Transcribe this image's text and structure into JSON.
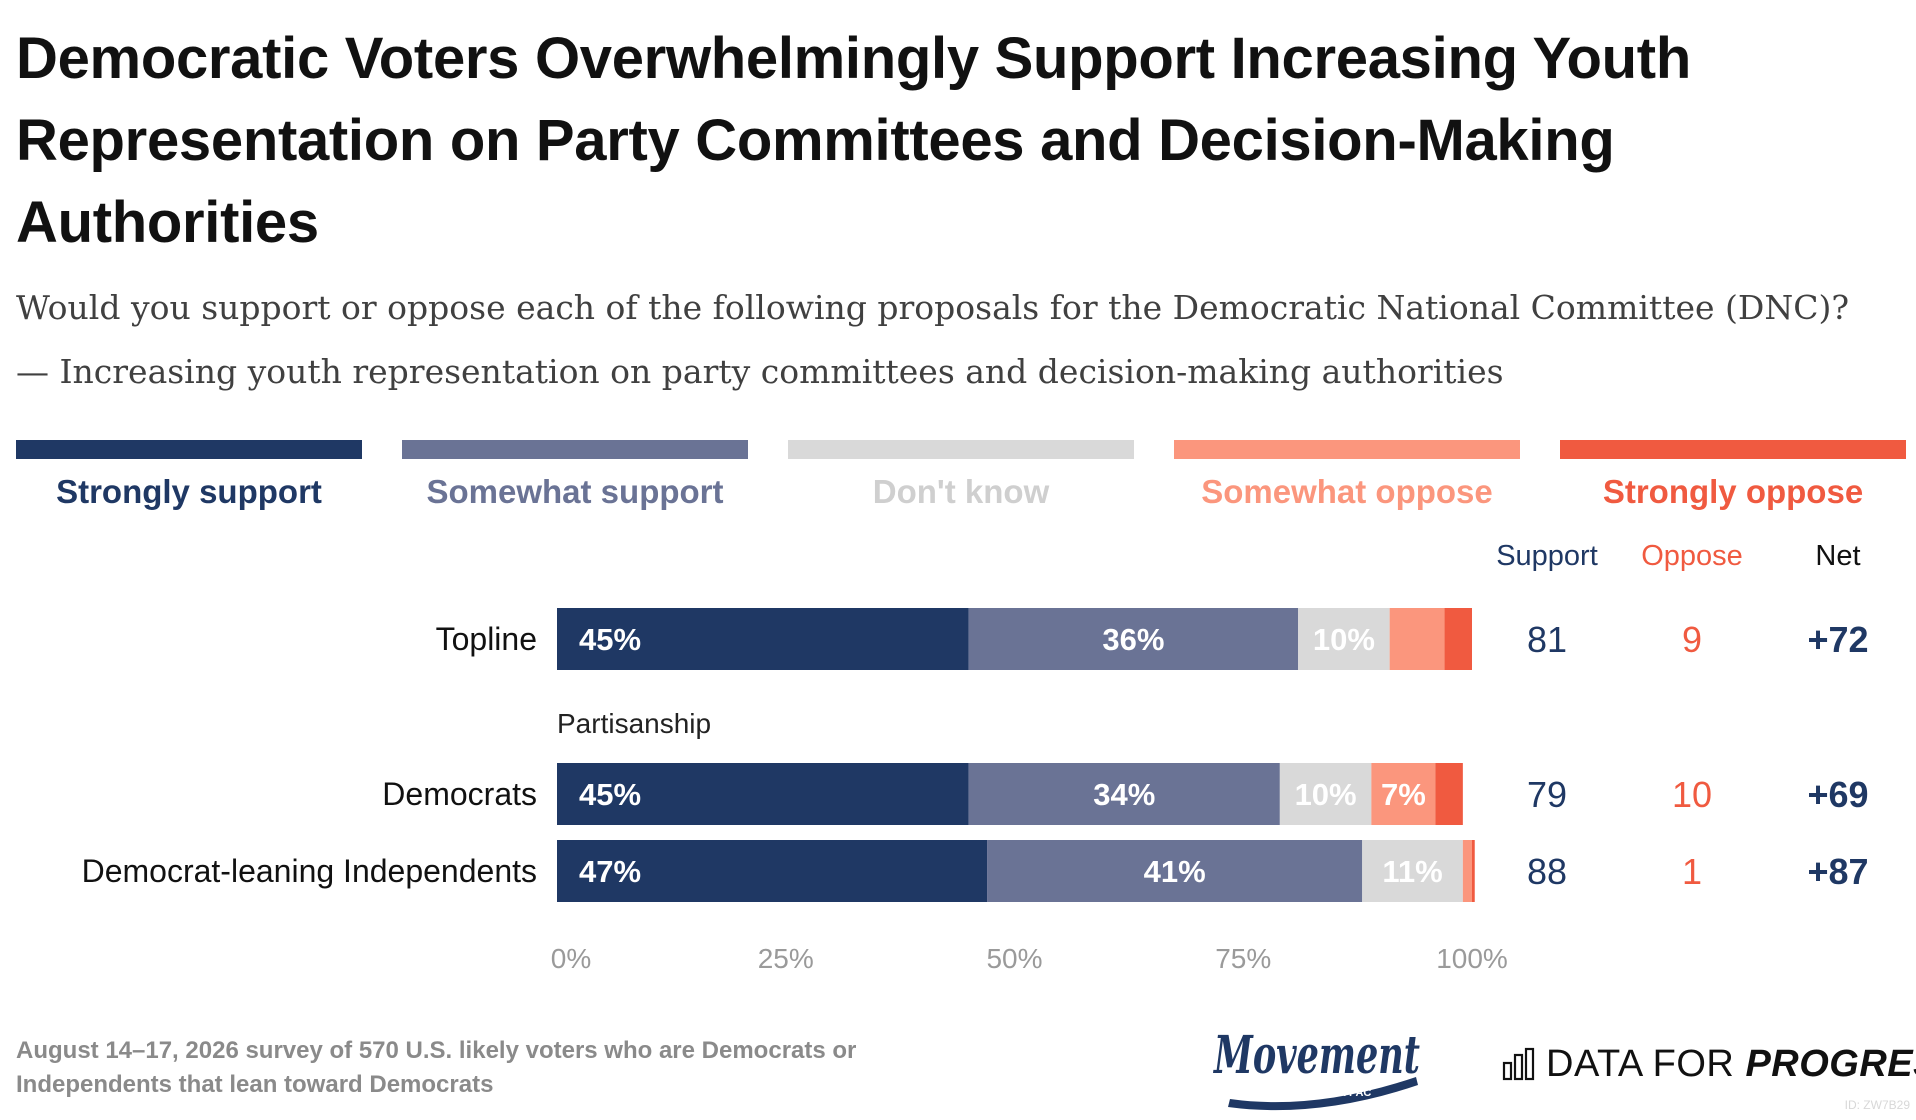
{
  "title": "Democratic Voters Overwhelmingly Support Increasing Youth Representation on Party Committees and Decision-Making Authorities",
  "subtitle_question": "Would you support or oppose each of the following proposals for the Democratic National Committee (DNC)?",
  "subtitle_item": "— Increasing youth representation on party committees and decision-making authorities",
  "colors": {
    "strongly_support": "#1f3864",
    "somewhat_support": "#6a7395",
    "dont_know": "#d9d9d9",
    "somewhat_oppose": "#fb967d",
    "strongly_oppose": "#f05a40",
    "axis_text": "#9a9a9a"
  },
  "legend": [
    {
      "label": "Strongly support",
      "color": "#1f3864",
      "text_color": "#1f3864"
    },
    {
      "label": "Somewhat support",
      "color": "#6a7395",
      "text_color": "#6a7395"
    },
    {
      "label": "Don't know",
      "color": "#d9d9d9",
      "text_color": "#cfcfcf"
    },
    {
      "label": "Somewhat oppose",
      "color": "#fb967d",
      "text_color": "#fb967d"
    },
    {
      "label": "Strongly oppose",
      "color": "#f05a40",
      "text_color": "#f05a40"
    }
  ],
  "chart_data": {
    "type": "bar",
    "orientation": "horizontal",
    "stacked": true,
    "xlim": [
      0,
      100
    ],
    "x_ticks": [
      "0%",
      "25%",
      "50%",
      "75%",
      "100%"
    ],
    "x_tick_values": [
      0,
      25,
      50,
      75,
      100
    ],
    "section_label": "Partisanship",
    "categories": [
      "Topline",
      "Democrats",
      "Democrat-leaning Independents"
    ],
    "series": [
      {
        "name": "Strongly support",
        "values": [
          45,
          45,
          47
        ],
        "labels": [
          "45%",
          "45%",
          "47%"
        ]
      },
      {
        "name": "Somewhat support",
        "values": [
          36,
          34,
          41
        ],
        "labels": [
          "36%",
          "34%",
          "41%"
        ]
      },
      {
        "name": "Don't know",
        "values": [
          10,
          10,
          11
        ],
        "labels": [
          "10%",
          "10%",
          "11%"
        ]
      },
      {
        "name": "Somewhat oppose",
        "values": [
          6,
          7,
          1
        ],
        "labels": [
          "",
          "7%",
          ""
        ]
      },
      {
        "name": "Strongly oppose",
        "values": [
          3,
          3,
          0.3
        ],
        "labels": [
          "",
          "",
          ""
        ]
      }
    ],
    "summary_headers": [
      "Support",
      "Oppose",
      "Net"
    ],
    "summary": [
      {
        "support": "81",
        "oppose": "9",
        "net": "+72"
      },
      {
        "support": "79",
        "oppose": "10",
        "net": "+69"
      },
      {
        "support": "88",
        "oppose": "1",
        "net": "+87"
      }
    ]
  },
  "footer_note": "August 14–17, 2026 survey of 570 U.S. likely voters who are Democrats or Independents that lean toward Democrats",
  "logos": {
    "movement_word": "Movement",
    "movement_sub": "VOTER PAC",
    "dfp_regular": "DATA FOR ",
    "dfp_bold": "PROGRESS"
  },
  "image_id": "ID: ZW7B29"
}
